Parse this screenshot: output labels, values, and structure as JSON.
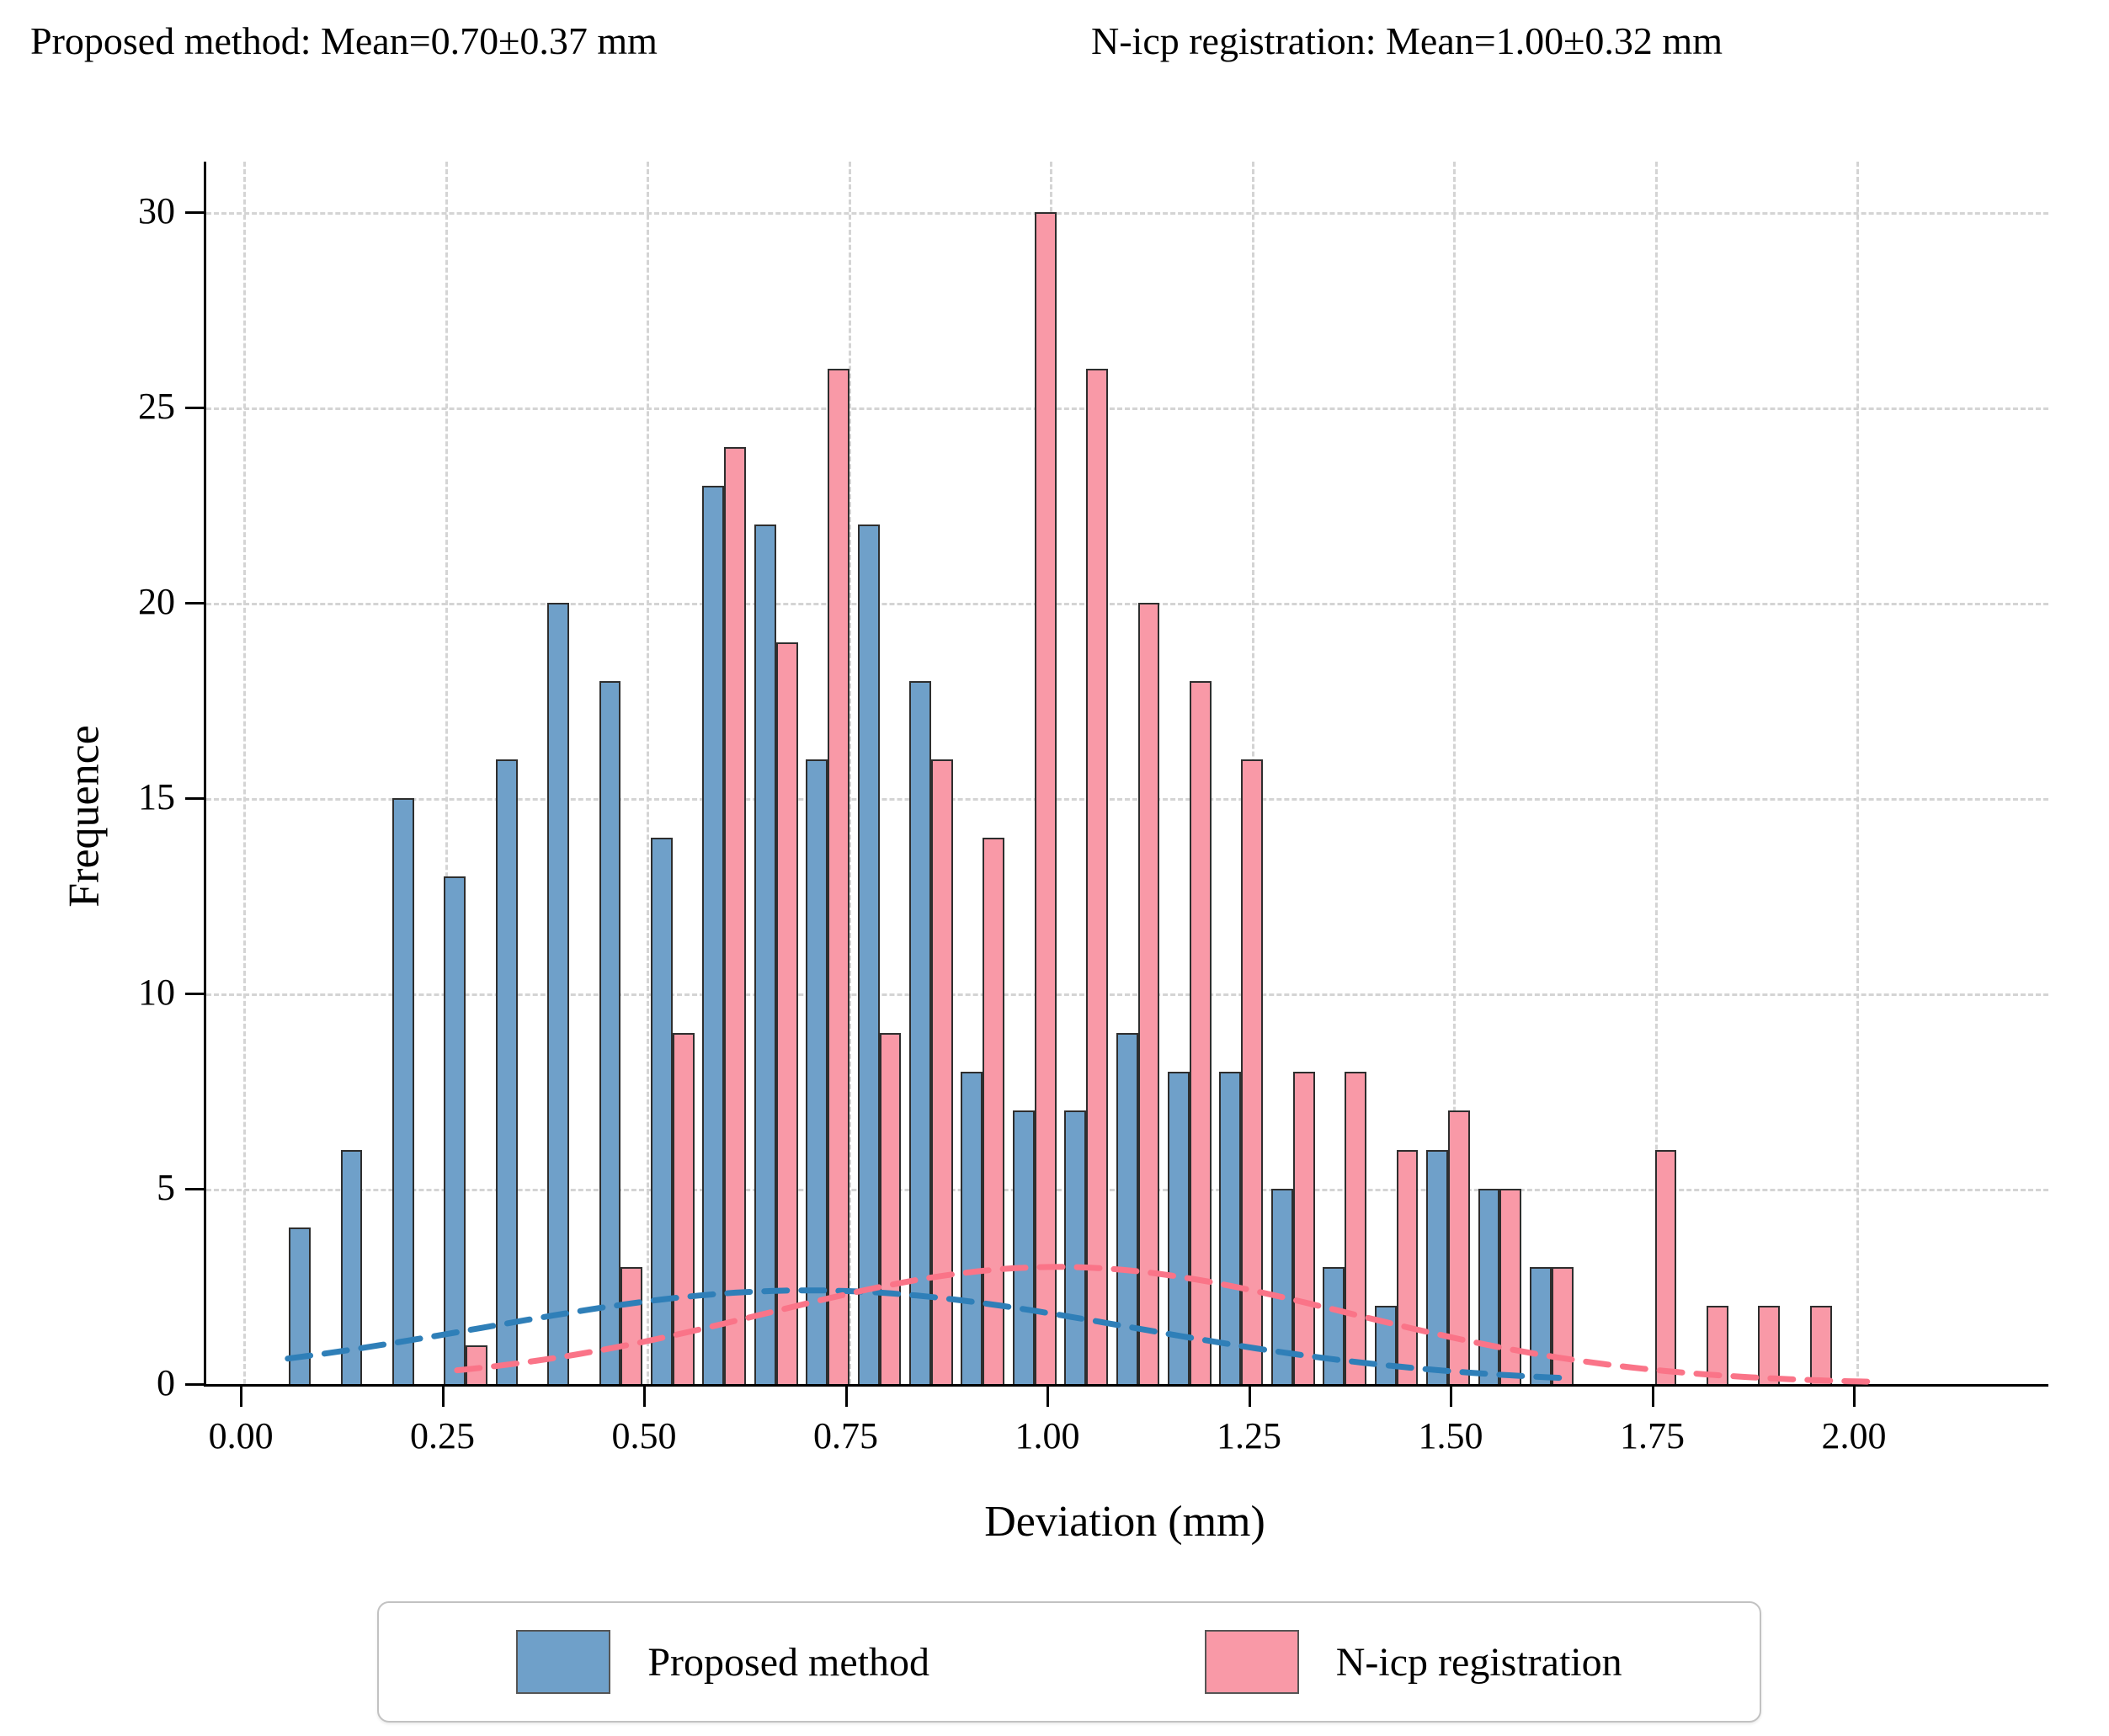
{
  "title": {
    "left": "Proposed method: Mean=0.70±0.37 mm",
    "right": "N-icp registration: Mean=1.00±0.32 mm"
  },
  "axes": {
    "xlabel": "Deviation (mm)",
    "ylabel": "Frequence"
  },
  "legend": {
    "items": [
      {
        "label": "Proposed method",
        "color": "#6FA0C9"
      },
      {
        "label": "N-icp registration",
        "color": "#F999A7"
      }
    ]
  },
  "chart_data": {
    "type": "bar",
    "title": "Histogram of surface deviation for two registration methods",
    "xlabel": "Deviation (mm)",
    "ylabel": "Frequence",
    "xlim": [
      -0.046,
      2.238
    ],
    "ylim": [
      0,
      31.3
    ],
    "grid": true,
    "legend_position": "bottom",
    "x_ticks": [
      "0.00",
      "0.25",
      "0.50",
      "0.75",
      "1.00",
      "1.25",
      "1.50",
      "1.75",
      "2.00"
    ],
    "x_tick_values": [
      0.0,
      0.25,
      0.5,
      0.75,
      1.0,
      1.25,
      1.5,
      1.75,
      2.0
    ],
    "y_ticks": [
      0,
      5,
      10,
      15,
      20,
      25,
      30
    ],
    "pair_start_mm": 0.0835,
    "pair_step_mm": 0.0641,
    "bar_width_mm": 0.027,
    "series": [
      {
        "name": "Proposed method",
        "color": "#6FA0C9",
        "edge_color": "#2e2e2e",
        "values": [
          4,
          6,
          15,
          13,
          16,
          20,
          18,
          14,
          23,
          22,
          16,
          22,
          18,
          8,
          7,
          7,
          9,
          8,
          8,
          5,
          3,
          2,
          6,
          5,
          3,
          0,
          0,
          0,
          0,
          0
        ]
      },
      {
        "name": "N-icp registration",
        "color": "#F999A7",
        "edge_color": "#2e2e2e",
        "values": [
          0,
          0,
          0,
          1,
          0,
          0,
          3,
          9,
          24,
          19,
          26,
          9,
          16,
          14,
          30,
          26,
          20,
          18,
          16,
          8,
          8,
          6,
          7,
          5,
          3,
          0,
          6,
          2,
          2,
          2
        ]
      }
    ],
    "kde_curves": [
      {
        "name": "Proposed method",
        "color": "#2F7FB8",
        "amplitude": 2.4,
        "mean": 0.7,
        "sigma": 0.4,
        "range": [
          0.055,
          1.655
        ]
      },
      {
        "name": "N-icp registration",
        "color": "#FA7488",
        "amplitude": 3.0,
        "mean": 1.01,
        "sigma": 0.36,
        "range": [
          0.265,
          2.02
        ]
      }
    ],
    "stats": [
      {
        "name": "Proposed method",
        "mean_mm": 0.7,
        "std_mm": 0.37
      },
      {
        "name": "N-icp registration",
        "mean_mm": 1.0,
        "std_mm": 0.32
      }
    ]
  }
}
